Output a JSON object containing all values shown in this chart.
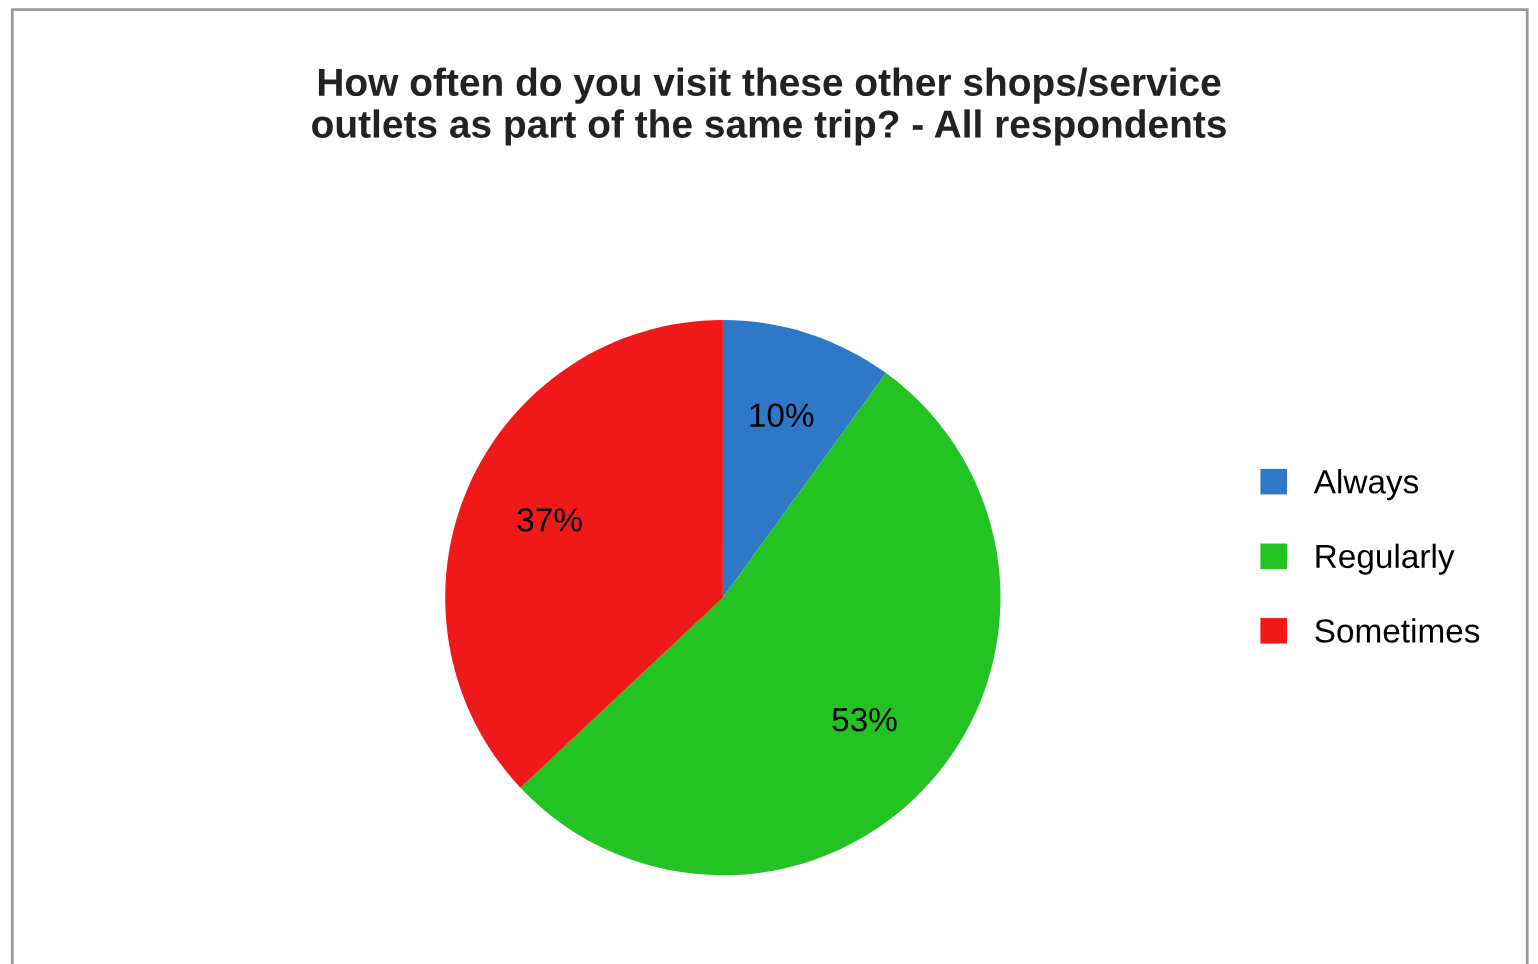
{
  "chart_data": {
    "type": "pie",
    "title": "How often do you visit these other shops/service\noutlets as part of the same trip? - All respondents",
    "categories": [
      "Always",
      "Regularly",
      "Sometimes"
    ],
    "values": [
      10,
      53,
      37
    ],
    "colors": [
      "#2f78c8",
      "#22c322",
      "#f01818"
    ],
    "value_labels": [
      "10%",
      "53%",
      "37%"
    ],
    "legend": "right"
  }
}
